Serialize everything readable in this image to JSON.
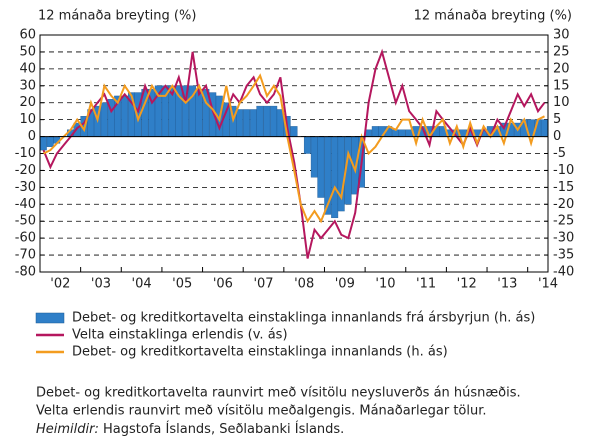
{
  "chart_data": {
    "type": "bar",
    "y_label": "12 mánaða breyting (%)",
    "y2_label": "12 mánaða breyting (%)",
    "x": [
      2002.0,
      2002.17,
      2002.33,
      2002.5,
      2002.67,
      2002.83,
      2003.0,
      2003.17,
      2003.33,
      2003.5,
      2003.67,
      2003.83,
      2004.0,
      2004.17,
      2004.33,
      2004.5,
      2004.67,
      2004.83,
      2005.0,
      2005.17,
      2005.33,
      2005.5,
      2005.67,
      2005.83,
      2006.0,
      2006.17,
      2006.33,
      2006.5,
      2006.67,
      2006.83,
      2007.0,
      2007.17,
      2007.33,
      2007.5,
      2007.67,
      2007.83,
      2008.0,
      2008.17,
      2008.33,
      2008.5,
      2008.67,
      2008.83,
      2009.0,
      2009.17,
      2009.33,
      2009.5,
      2009.67,
      2009.83,
      2010.0,
      2010.17,
      2010.33,
      2010.5,
      2010.67,
      2010.83,
      2011.0,
      2011.17,
      2011.33,
      2011.5,
      2011.67,
      2011.83,
      2012.0,
      2012.17,
      2012.33,
      2012.5,
      2012.67,
      2012.83,
      2013.0,
      2013.17,
      2013.33,
      2013.5,
      2013.67,
      2013.83,
      2014.0,
      2014.17,
      2014.33
    ],
    "series": [
      {
        "name": "Debet- og kreditkortavelta einstaklinga innanlands frá ársbyrjun (h. ás)",
        "color": "#2f7fc8",
        "axis": "y2",
        "kind": "bar",
        "values": [
          -4,
          -3,
          -2,
          0,
          2,
          4,
          6,
          8,
          9,
          10,
          11,
          12,
          12,
          13,
          13,
          14,
          14,
          15,
          15,
          15,
          15,
          15,
          15,
          14,
          14,
          13,
          12,
          10,
          9,
          8,
          8,
          8,
          9,
          9,
          9,
          8,
          6,
          3,
          0,
          -5,
          -12,
          -18,
          -23,
          -24,
          -22,
          -20,
          -17,
          -15,
          2,
          3,
          3,
          3,
          2,
          2,
          2,
          3,
          3,
          3,
          3,
          3,
          2,
          2,
          2,
          2,
          2,
          2,
          3,
          3,
          4,
          4,
          4,
          5,
          5,
          5,
          5
        ]
      },
      {
        "name": "Velta einstaklinga erlendis (v. ás)",
        "color": "#b5175e",
        "axis": "y",
        "kind": "line",
        "values": [
          -8,
          -18,
          -10,
          -5,
          0,
          5,
          8,
          15,
          20,
          25,
          15,
          20,
          25,
          20,
          15,
          30,
          20,
          25,
          30,
          25,
          35,
          20,
          50,
          25,
          30,
          15,
          5,
          15,
          25,
          20,
          30,
          35,
          25,
          20,
          25,
          35,
          5,
          -15,
          -40,
          -72,
          -55,
          -60,
          -55,
          -50,
          -58,
          -60,
          -45,
          -15,
          20,
          40,
          50,
          35,
          20,
          30,
          15,
          10,
          5,
          -5,
          15,
          10,
          5,
          0,
          -5,
          5,
          -5,
          5,
          0,
          10,
          5,
          15,
          25,
          18,
          25,
          15,
          20
        ]
      },
      {
        "name": "Debet- og kreditkortavelta einstaklinga innanlands (h. ás)",
        "color": "#f39c1f",
        "axis": "y2",
        "kind": "line",
        "values": [
          -5,
          -4,
          -2,
          0,
          2,
          5,
          2,
          10,
          5,
          15,
          12,
          10,
          15,
          12,
          5,
          10,
          15,
          12,
          12,
          15,
          12,
          10,
          12,
          15,
          10,
          8,
          5,
          15,
          5,
          10,
          12,
          15,
          18,
          12,
          15,
          12,
          0,
          -10,
          -20,
          -25,
          -22,
          -25,
          -20,
          -15,
          -18,
          -5,
          -10,
          0,
          -5,
          -3,
          0,
          3,
          2,
          5,
          5,
          -2,
          5,
          0,
          3,
          5,
          -2,
          3,
          -3,
          4,
          -2,
          3,
          0,
          3,
          -2,
          5,
          2,
          5,
          -2,
          5,
          6
        ]
      }
    ],
    "xlim": [
      2002,
      2014.5
    ],
    "xticks": [
      {
        "value": 2002.5,
        "label": "'02"
      },
      {
        "value": 2003.5,
        "label": "'03"
      },
      {
        "value": 2004.5,
        "label": "'04"
      },
      {
        "value": 2005.5,
        "label": "'05"
      },
      {
        "value": 2006.5,
        "label": "'06"
      },
      {
        "value": 2007.5,
        "label": "'07"
      },
      {
        "value": 2008.5,
        "label": "'08"
      },
      {
        "value": 2009.5,
        "label": "'09"
      },
      {
        "value": 2010.5,
        "label": "'10"
      },
      {
        "value": 2011.5,
        "label": "'11"
      },
      {
        "value": 2012.5,
        "label": "'12"
      },
      {
        "value": 2013.5,
        "label": "'13"
      },
      {
        "value": 2014.5,
        "label": "'14"
      }
    ],
    "ylim": [
      -80,
      60
    ],
    "yticks": [
      60,
      50,
      40,
      30,
      20,
      10,
      0,
      -10,
      -20,
      -30,
      -40,
      -50,
      -60,
      -70,
      -80
    ],
    "y2lim": [
      -40,
      30
    ],
    "y2ticks": [
      30,
      25,
      20,
      15,
      10,
      5,
      0,
      -5,
      -10,
      -15,
      -20,
      -25,
      -30,
      -35,
      -40
    ],
    "grid": true,
    "notes": [
      "Debet- og kreditkortavelta raunvirt með vísitölu neysluverðs án húsnæðis.",
      "Velta erlendis raunvirt með vísitölu meðalgengis. Mánaðarlegar tölur."
    ],
    "source_label": "Heimildir:",
    "source": "Hagstofa Íslands, Seðlabanki Íslands."
  }
}
